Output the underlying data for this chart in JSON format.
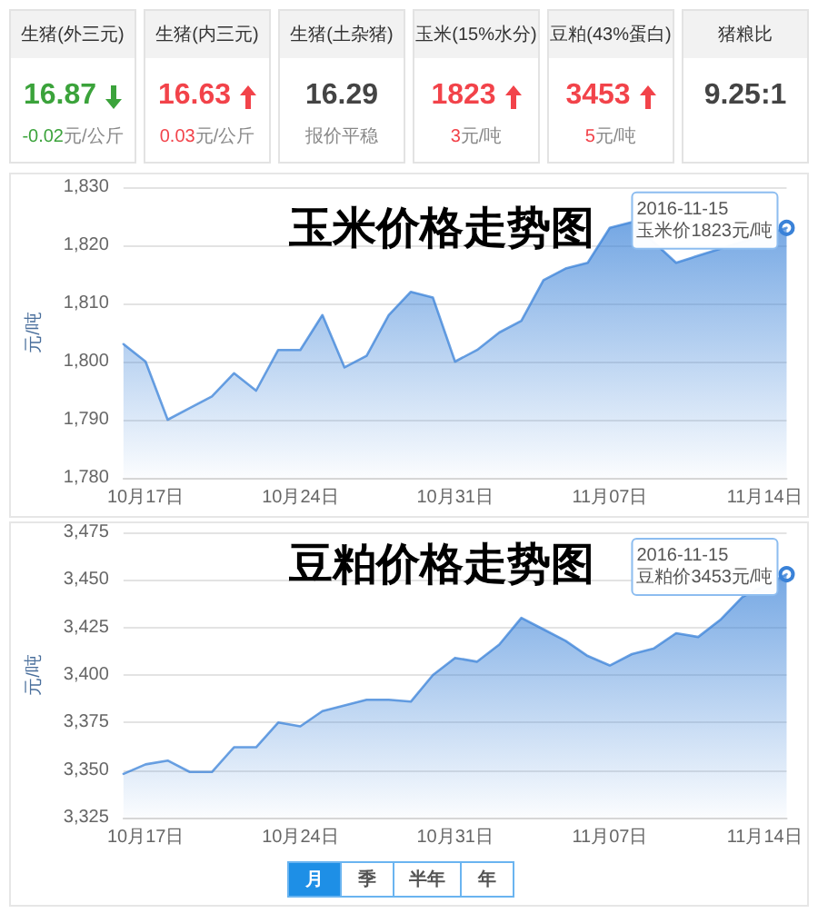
{
  "chart_data": [
    {
      "type": "other",
      "categories": [
        "生猪(外三元)",
        "生猪(内三元)",
        "生猪(土杂猪)",
        "玉米(15%水分)",
        "豆粕(43%蛋白)",
        "猪粮比"
      ],
      "annotations": [
        "16.87",
        "16.63",
        "16.29",
        "1823",
        "3453",
        "9.25:1"
      ],
      "values": [
        -0.02,
        0.03,
        null,
        3,
        5,
        null
      ],
      "value_labels": [
        "-0.02元/公斤",
        "0.03元/公斤",
        "报价平稳",
        "3元/吨",
        "5元/吨",
        null
      ]
    },
    {
      "type": "area",
      "title": "玉米价格走势图",
      "ylabel": "元/吨",
      "x": [
        "2016-10-16",
        "2016-10-17",
        "2016-10-18",
        "2016-10-19",
        "2016-10-20",
        "2016-10-21",
        "2016-10-22",
        "2016-10-23",
        "2016-10-24",
        "2016-10-25",
        "2016-10-26",
        "2016-10-27",
        "2016-10-28",
        "2016-10-29",
        "2016-10-30",
        "2016-10-31",
        "2016-11-01",
        "2016-11-02",
        "2016-11-03",
        "2016-11-04",
        "2016-11-05",
        "2016-11-06",
        "2016-11-07",
        "2016-11-08",
        "2016-11-09",
        "2016-11-10",
        "2016-11-11",
        "2016-11-12",
        "2016-11-13",
        "2016-11-14",
        "2016-11-15"
      ],
      "values": [
        1803,
        1800,
        1790,
        1792,
        1794,
        1798,
        1795,
        1802,
        1802,
        1808,
        1799,
        1801,
        1808,
        1812,
        1811,
        1800,
        1802,
        1805,
        1807,
        1814,
        1816,
        1817,
        1823,
        1824,
        null,
        1817,
        null,
        null,
        null,
        null,
        1823
      ],
      "color": "#3a82d8",
      "xlim": [
        "2016-10-16",
        "2016-11-15"
      ],
      "xticks": [
        {
          "value": "2016-10-17",
          "label": "10月17日"
        },
        {
          "value": "2016-10-24",
          "label": "10月24日"
        },
        {
          "value": "2016-10-31",
          "label": "10月31日"
        },
        {
          "value": "2016-11-07",
          "label": "11月07日"
        },
        {
          "value": "2016-11-14",
          "label": "11月14日"
        }
      ],
      "ylim": [
        1780,
        1830
      ],
      "yticks": [
        {
          "value": 1780,
          "label": "1,780"
        },
        {
          "value": 1790,
          "label": "1,790"
        },
        {
          "value": 1800,
          "label": "1,800"
        },
        {
          "value": 1810,
          "label": "1,810"
        },
        {
          "value": 1820,
          "label": "1,820"
        },
        {
          "value": 1830,
          "label": "1,830"
        }
      ],
      "grid": "y",
      "marker": "none",
      "annotations": [
        {
          "text": "2016-11-15\n玉米价1823元/吨",
          "x": "2016-11-15",
          "y": 1823
        }
      ]
    },
    {
      "type": "area",
      "title": "豆粕价格走势图",
      "ylabel": "元/吨",
      "x": [
        "2016-10-16",
        "2016-10-17",
        "2016-10-18",
        "2016-10-19",
        "2016-10-20",
        "2016-10-21",
        "2016-10-22",
        "2016-10-23",
        "2016-10-24",
        "2016-10-25",
        "2016-10-26",
        "2016-10-27",
        "2016-10-28",
        "2016-10-29",
        "2016-10-30",
        "2016-10-31",
        "2016-11-01",
        "2016-11-02",
        "2016-11-03",
        "2016-11-04",
        "2016-11-05",
        "2016-11-06",
        "2016-11-07",
        "2016-11-08",
        "2016-11-09",
        "2016-11-10",
        "2016-11-11",
        "2016-11-12",
        "2016-11-13",
        "2016-11-14",
        "2016-11-15"
      ],
      "values": [
        3348,
        3353,
        3355,
        3349,
        3349,
        3362,
        3362,
        3375,
        3373,
        3381,
        3384,
        3387,
        3387,
        3386,
        3400,
        3409,
        3407,
        3416,
        3430,
        3424,
        3418,
        3410,
        3405,
        3411,
        3414,
        3422,
        3420,
        3429,
        3441,
        null,
        3453
      ],
      "color": "#3a82d8",
      "xlim": [
        "2016-10-16",
        "2016-11-15"
      ],
      "xticks": [
        {
          "value": "2016-10-17",
          "label": "10月17日"
        },
        {
          "value": "2016-10-24",
          "label": "10月24日"
        },
        {
          "value": "2016-10-31",
          "label": "10月31日"
        },
        {
          "value": "2016-11-07",
          "label": "11月07日"
        },
        {
          "value": "2016-11-14",
          "label": "11月14日"
        }
      ],
      "ylim": [
        3325,
        3475
      ],
      "yticks": [
        {
          "value": 3325,
          "label": "3,325"
        },
        {
          "value": 3350,
          "label": "3,350"
        },
        {
          "value": 3375,
          "label": "3,375"
        },
        {
          "value": 3400,
          "label": "3,400"
        },
        {
          "value": 3425,
          "label": "3,425"
        },
        {
          "value": 3450,
          "label": "3,450"
        },
        {
          "value": 3475,
          "label": "3,475"
        }
      ],
      "grid": "y",
      "marker": "none",
      "annotations": [
        {
          "text": "2016-11-15\n豆粕价3453元/吨",
          "x": "2016-11-15",
          "y": 3453
        }
      ]
    },
    {
      "type": "other",
      "categories": [
        "月",
        "季",
        "半年",
        "年"
      ]
    }
  ]
}
